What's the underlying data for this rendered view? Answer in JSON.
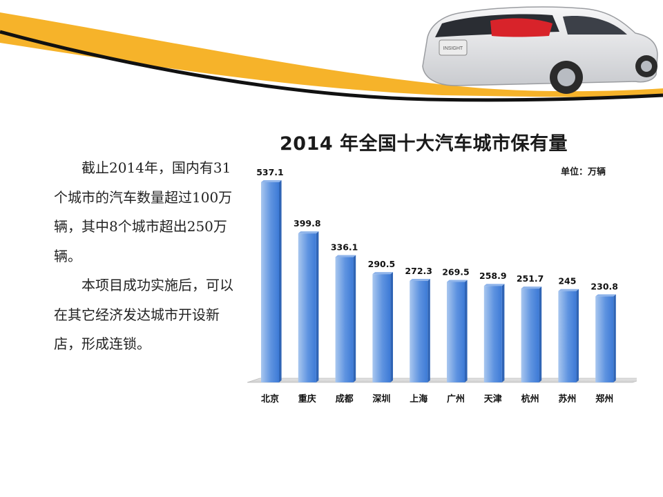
{
  "slide": {
    "paragraph1": "截止2014年，国内有31个城市的汽车数量超过100万辆，其中8个城市超出250万辆。",
    "paragraph2": "本项目成功实施后，可以在其它经济发达城市开设新店，形成连锁。"
  },
  "colors": {
    "swoosh_gold": "#f6b32a",
    "swoosh_black": "#111111",
    "bar_light": "#a9c7ef",
    "bar_dark": "#3d7ad6",
    "car_body": "#e8e9ec"
  },
  "decorations": {
    "car_icon": "car-rear-photo",
    "car_badge": "INSIGHT"
  },
  "chart_data": {
    "type": "bar",
    "title": "2014 年全国十大汽车城市保有量",
    "unit_label": "单位：万辆",
    "categories": [
      "北京",
      "重庆",
      "成都",
      "深圳",
      "上海",
      "广州",
      "天津",
      "杭州",
      "苏州",
      "郑州"
    ],
    "values": [
      537.1,
      399.8,
      336.1,
      290.5,
      272.3,
      269.5,
      258.9,
      251.7,
      245,
      230.8
    ],
    "value_labels": [
      "537.1",
      "399.8",
      "336.1",
      "290.5",
      "272.3",
      "269.5",
      "258.9",
      "251.7",
      "245",
      "230.8"
    ],
    "ylim": [
      0,
      560
    ],
    "grid": false,
    "legend": "none"
  }
}
